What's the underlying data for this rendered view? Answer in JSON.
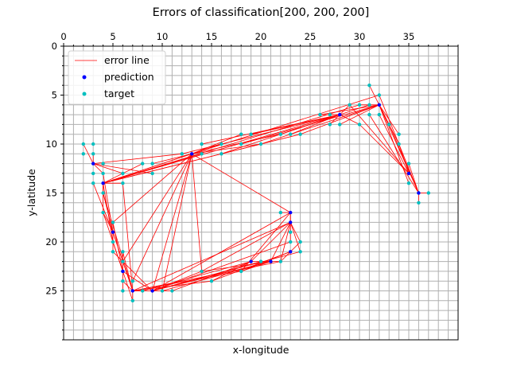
{
  "chart_data": {
    "type": "scatter",
    "title": "Errors of classification[200, 200, 200]",
    "xlabel": "x-longitude",
    "ylabel": "y-latitude",
    "xlim": [
      0,
      40
    ],
    "ylim": [
      30,
      0
    ],
    "y_inverted": true,
    "x_axis_position": "top",
    "xticks": [
      0,
      5,
      10,
      15,
      20,
      25,
      30,
      35
    ],
    "yticks": [
      0,
      5,
      10,
      15,
      20,
      25
    ],
    "grid": true,
    "legend_position": "top-left",
    "legend": [
      {
        "label": "error line",
        "kind": "line",
        "color": "#ff0000"
      },
      {
        "label": "prediction",
        "kind": "marker",
        "color": "#0000ff"
      },
      {
        "label": "target",
        "kind": "marker",
        "color": "#00bfbf"
      }
    ],
    "predictions": [
      [
        3,
        12
      ],
      [
        4,
        14
      ],
      [
        13,
        11
      ],
      [
        32,
        6
      ],
      [
        36,
        15
      ],
      [
        35,
        13
      ],
      [
        7,
        25
      ],
      [
        9,
        25
      ],
      [
        23,
        17
      ],
      [
        23,
        18
      ],
      [
        23,
        21
      ],
      [
        21,
        22
      ],
      [
        19,
        22
      ],
      [
        6,
        23
      ],
      [
        5,
        19
      ],
      [
        28,
        7
      ]
    ],
    "targets": [
      [
        2,
        10
      ],
      [
        2,
        11
      ],
      [
        3,
        10
      ],
      [
        3,
        11
      ],
      [
        3,
        13
      ],
      [
        3,
        14
      ],
      [
        4,
        12
      ],
      [
        4,
        13
      ],
      [
        4,
        15
      ],
      [
        4,
        17
      ],
      [
        5,
        18
      ],
      [
        5,
        20
      ],
      [
        5,
        21
      ],
      [
        6,
        13
      ],
      [
        6,
        14
      ],
      [
        6,
        21
      ],
      [
        6,
        22
      ],
      [
        6,
        23
      ],
      [
        6,
        24
      ],
      [
        6,
        25
      ],
      [
        7,
        24
      ],
      [
        7,
        26
      ],
      [
        8,
        12
      ],
      [
        8,
        25
      ],
      [
        9,
        12
      ],
      [
        9,
        13
      ],
      [
        10,
        25
      ],
      [
        11,
        25
      ],
      [
        12,
        11
      ],
      [
        14,
        10
      ],
      [
        14,
        11
      ],
      [
        14,
        23
      ],
      [
        15,
        24
      ],
      [
        16,
        10
      ],
      [
        16,
        11
      ],
      [
        18,
        9
      ],
      [
        18,
        10
      ],
      [
        18,
        23
      ],
      [
        19,
        9
      ],
      [
        20,
        10
      ],
      [
        20,
        22
      ],
      [
        21,
        22
      ],
      [
        22,
        9
      ],
      [
        22,
        22
      ],
      [
        23,
        9
      ],
      [
        23,
        19
      ],
      [
        23,
        20
      ],
      [
        24,
        9
      ],
      [
        24,
        20
      ],
      [
        24,
        21
      ],
      [
        26,
        7
      ],
      [
        27,
        7
      ],
      [
        27,
        8
      ],
      [
        28,
        8
      ],
      [
        29,
        6
      ],
      [
        30,
        6
      ],
      [
        30,
        8
      ],
      [
        31,
        4
      ],
      [
        31,
        6
      ],
      [
        31,
        7
      ],
      [
        32,
        5
      ],
      [
        32,
        7
      ],
      [
        33,
        8
      ],
      [
        34,
        9
      ],
      [
        34,
        10
      ],
      [
        35,
        12
      ],
      [
        35,
        14
      ],
      [
        36,
        15
      ],
      [
        36,
        16
      ],
      [
        37,
        15
      ],
      [
        22,
        17
      ]
    ],
    "errors": [
      [
        [
          3,
          12
        ],
        [
          2,
          10
        ]
      ],
      [
        [
          3,
          12
        ],
        [
          3,
          11
        ]
      ],
      [
        [
          3,
          12
        ],
        [
          4,
          13
        ]
      ],
      [
        [
          3,
          12
        ],
        [
          6,
          13
        ]
      ],
      [
        [
          3,
          12
        ],
        [
          12,
          11
        ]
      ],
      [
        [
          3,
          12
        ],
        [
          9,
          13
        ]
      ],
      [
        [
          4,
          14
        ],
        [
          4,
          15
        ]
      ],
      [
        [
          4,
          14
        ],
        [
          4,
          17
        ]
      ],
      [
        [
          4,
          14
        ],
        [
          6,
          14
        ]
      ],
      [
        [
          4,
          14
        ],
        [
          8,
          12
        ]
      ],
      [
        [
          4,
          14
        ],
        [
          14,
          11
        ]
      ],
      [
        [
          4,
          14
        ],
        [
          16,
          10
        ]
      ],
      [
        [
          4,
          14
        ],
        [
          20,
          10
        ]
      ],
      [
        [
          4,
          14
        ],
        [
          24,
          9
        ]
      ],
      [
        [
          4,
          14
        ],
        [
          28,
          7
        ]
      ],
      [
        [
          4,
          14
        ],
        [
          13,
          11
        ]
      ],
      [
        [
          4,
          14
        ],
        [
          30,
          6
        ]
      ],
      [
        [
          4,
          14
        ],
        [
          5,
          20
        ]
      ],
      [
        [
          13,
          11
        ],
        [
          9,
          12
        ]
      ],
      [
        [
          13,
          11
        ],
        [
          5,
          18
        ]
      ],
      [
        [
          13,
          11
        ],
        [
          6,
          22
        ]
      ],
      [
        [
          13,
          11
        ],
        [
          7,
          24
        ]
      ],
      [
        [
          13,
          11
        ],
        [
          10,
          25
        ]
      ],
      [
        [
          13,
          11
        ],
        [
          14,
          23
        ]
      ],
      [
        [
          13,
          11
        ],
        [
          16,
          10
        ]
      ],
      [
        [
          13,
          11
        ],
        [
          18,
          9
        ]
      ],
      [
        [
          13,
          11
        ],
        [
          22,
          9
        ]
      ],
      [
        [
          13,
          11
        ],
        [
          32,
          5
        ]
      ],
      [
        [
          13,
          11
        ],
        [
          20,
          10
        ]
      ],
      [
        [
          13,
          11
        ],
        [
          23,
          17
        ]
      ],
      [
        [
          32,
          6
        ],
        [
          31,
          4
        ]
      ],
      [
        [
          32,
          6
        ],
        [
          30,
          6
        ]
      ],
      [
        [
          32,
          6
        ],
        [
          33,
          8
        ]
      ],
      [
        [
          32,
          6
        ],
        [
          34,
          10
        ]
      ],
      [
        [
          32,
          6
        ],
        [
          35,
          14
        ]
      ],
      [
        [
          32,
          6
        ],
        [
          36,
          15
        ]
      ],
      [
        [
          32,
          6
        ],
        [
          28,
          8
        ]
      ],
      [
        [
          32,
          6
        ],
        [
          26,
          7
        ]
      ],
      [
        [
          32,
          6
        ],
        [
          20,
          10
        ]
      ],
      [
        [
          32,
          6
        ],
        [
          24,
          9
        ]
      ],
      [
        [
          32,
          6
        ],
        [
          18,
          10
        ]
      ],
      [
        [
          32,
          6
        ],
        [
          34,
          9
        ]
      ],
      [
        [
          36,
          15
        ],
        [
          35,
          12
        ]
      ],
      [
        [
          36,
          15
        ],
        [
          33,
          8
        ]
      ],
      [
        [
          36,
          15
        ],
        [
          31,
          7
        ]
      ],
      [
        [
          36,
          15
        ],
        [
          32,
          5
        ]
      ],
      [
        [
          36,
          15
        ],
        [
          37,
          15
        ]
      ],
      [
        [
          36,
          15
        ],
        [
          36,
          16
        ]
      ],
      [
        [
          35,
          13
        ],
        [
          34,
          10
        ]
      ],
      [
        [
          35,
          13
        ],
        [
          32,
          7
        ]
      ],
      [
        [
          35,
          13
        ],
        [
          30,
          8
        ]
      ],
      [
        [
          35,
          13
        ],
        [
          29,
          6
        ]
      ],
      [
        [
          7,
          25
        ],
        [
          6,
          21
        ]
      ],
      [
        [
          7,
          25
        ],
        [
          5,
          19
        ]
      ],
      [
        [
          7,
          25
        ],
        [
          6,
          24
        ]
      ],
      [
        [
          7,
          25
        ],
        [
          7,
          26
        ]
      ],
      [
        [
          7,
          25
        ],
        [
          8,
          25
        ]
      ],
      [
        [
          7,
          25
        ],
        [
          11,
          25
        ]
      ],
      [
        [
          7,
          25
        ],
        [
          15,
          24
        ]
      ],
      [
        [
          7,
          25
        ],
        [
          18,
          23
        ]
      ],
      [
        [
          7,
          25
        ],
        [
          22,
          22
        ]
      ],
      [
        [
          7,
          25
        ],
        [
          23,
          18
        ]
      ],
      [
        [
          7,
          25
        ],
        [
          4,
          15
        ]
      ],
      [
        [
          7,
          25
        ],
        [
          6,
          14
        ]
      ],
      [
        [
          9,
          25
        ],
        [
          6,
          23
        ]
      ],
      [
        [
          9,
          25
        ],
        [
          14,
          23
        ]
      ],
      [
        [
          9,
          25
        ],
        [
          20,
          22
        ]
      ],
      [
        [
          9,
          25
        ],
        [
          23,
          20
        ]
      ],
      [
        [
          9,
          25
        ],
        [
          24,
          21
        ]
      ],
      [
        [
          9,
          25
        ],
        [
          21,
          22
        ]
      ],
      [
        [
          9,
          25
        ],
        [
          5,
          21
        ]
      ],
      [
        [
          9,
          25
        ],
        [
          13,
          11
        ]
      ],
      [
        [
          9,
          25
        ],
        [
          23,
          17
        ]
      ],
      [
        [
          23,
          17
        ],
        [
          22,
          17
        ]
      ],
      [
        [
          23,
          17
        ],
        [
          23,
          19
        ]
      ],
      [
        [
          23,
          17
        ],
        [
          23,
          20
        ]
      ],
      [
        [
          23,
          17
        ],
        [
          18,
          23
        ]
      ],
      [
        [
          23,
          18
        ],
        [
          24,
          20
        ]
      ],
      [
        [
          23,
          18
        ],
        [
          24,
          21
        ]
      ],
      [
        [
          23,
          18
        ],
        [
          19,
          22
        ]
      ],
      [
        [
          23,
          18
        ],
        [
          14,
          23
        ]
      ],
      [
        [
          23,
          18
        ],
        [
          22,
          22
        ]
      ],
      [
        [
          23,
          18
        ],
        [
          21,
          22
        ]
      ],
      [
        [
          23,
          21
        ],
        [
          24,
          20
        ]
      ],
      [
        [
          23,
          21
        ],
        [
          22,
          22
        ]
      ],
      [
        [
          23,
          21
        ],
        [
          18,
          23
        ]
      ],
      [
        [
          23,
          21
        ],
        [
          15,
          24
        ]
      ],
      [
        [
          21,
          22
        ],
        [
          20,
          22
        ]
      ],
      [
        [
          21,
          22
        ],
        [
          18,
          23
        ]
      ],
      [
        [
          21,
          22
        ],
        [
          14,
          23
        ]
      ],
      [
        [
          21,
          22
        ],
        [
          10,
          25
        ]
      ],
      [
        [
          19,
          22
        ],
        [
          22,
          22
        ]
      ],
      [
        [
          19,
          22
        ],
        [
          15,
          24
        ]
      ],
      [
        [
          19,
          22
        ],
        [
          11,
          25
        ]
      ],
      [
        [
          19,
          22
        ],
        [
          8,
          25
        ]
      ],
      [
        [
          6,
          23
        ],
        [
          6,
          21
        ]
      ],
      [
        [
          6,
          23
        ],
        [
          5,
          20
        ]
      ],
      [
        [
          6,
          23
        ],
        [
          5,
          18
        ]
      ],
      [
        [
          6,
          23
        ],
        [
          4,
          17
        ]
      ],
      [
        [
          6,
          23
        ],
        [
          6,
          25
        ]
      ],
      [
        [
          6,
          23
        ],
        [
          7,
          26
        ]
      ],
      [
        [
          5,
          19
        ],
        [
          4,
          15
        ]
      ],
      [
        [
          5,
          19
        ],
        [
          4,
          17
        ]
      ],
      [
        [
          5,
          19
        ],
        [
          5,
          21
        ]
      ],
      [
        [
          5,
          19
        ],
        [
          6,
          22
        ]
      ],
      [
        [
          5,
          19
        ],
        [
          3,
          14
        ]
      ],
      [
        [
          5,
          19
        ],
        [
          4,
          13
        ]
      ],
      [
        [
          28,
          7
        ],
        [
          26,
          7
        ]
      ],
      [
        [
          28,
          7
        ],
        [
          27,
          8
        ]
      ],
      [
        [
          28,
          7
        ],
        [
          29,
          6
        ]
      ],
      [
        [
          28,
          7
        ],
        [
          30,
          8
        ]
      ],
      [
        [
          28,
          7
        ],
        [
          22,
          9
        ]
      ],
      [
        [
          28,
          7
        ],
        [
          19,
          9
        ]
      ],
      [
        [
          28,
          7
        ],
        [
          14,
          10
        ]
      ],
      [
        [
          28,
          7
        ],
        [
          12,
          11
        ]
      ],
      [
        [
          28,
          7
        ],
        [
          23,
          9
        ]
      ],
      [
        [
          28,
          7
        ],
        [
          31,
          6
        ]
      ],
      [
        [
          28,
          7
        ],
        [
          27,
          7
        ]
      ],
      [
        [
          28,
          7
        ],
        [
          16,
          11
        ]
      ]
    ]
  }
}
